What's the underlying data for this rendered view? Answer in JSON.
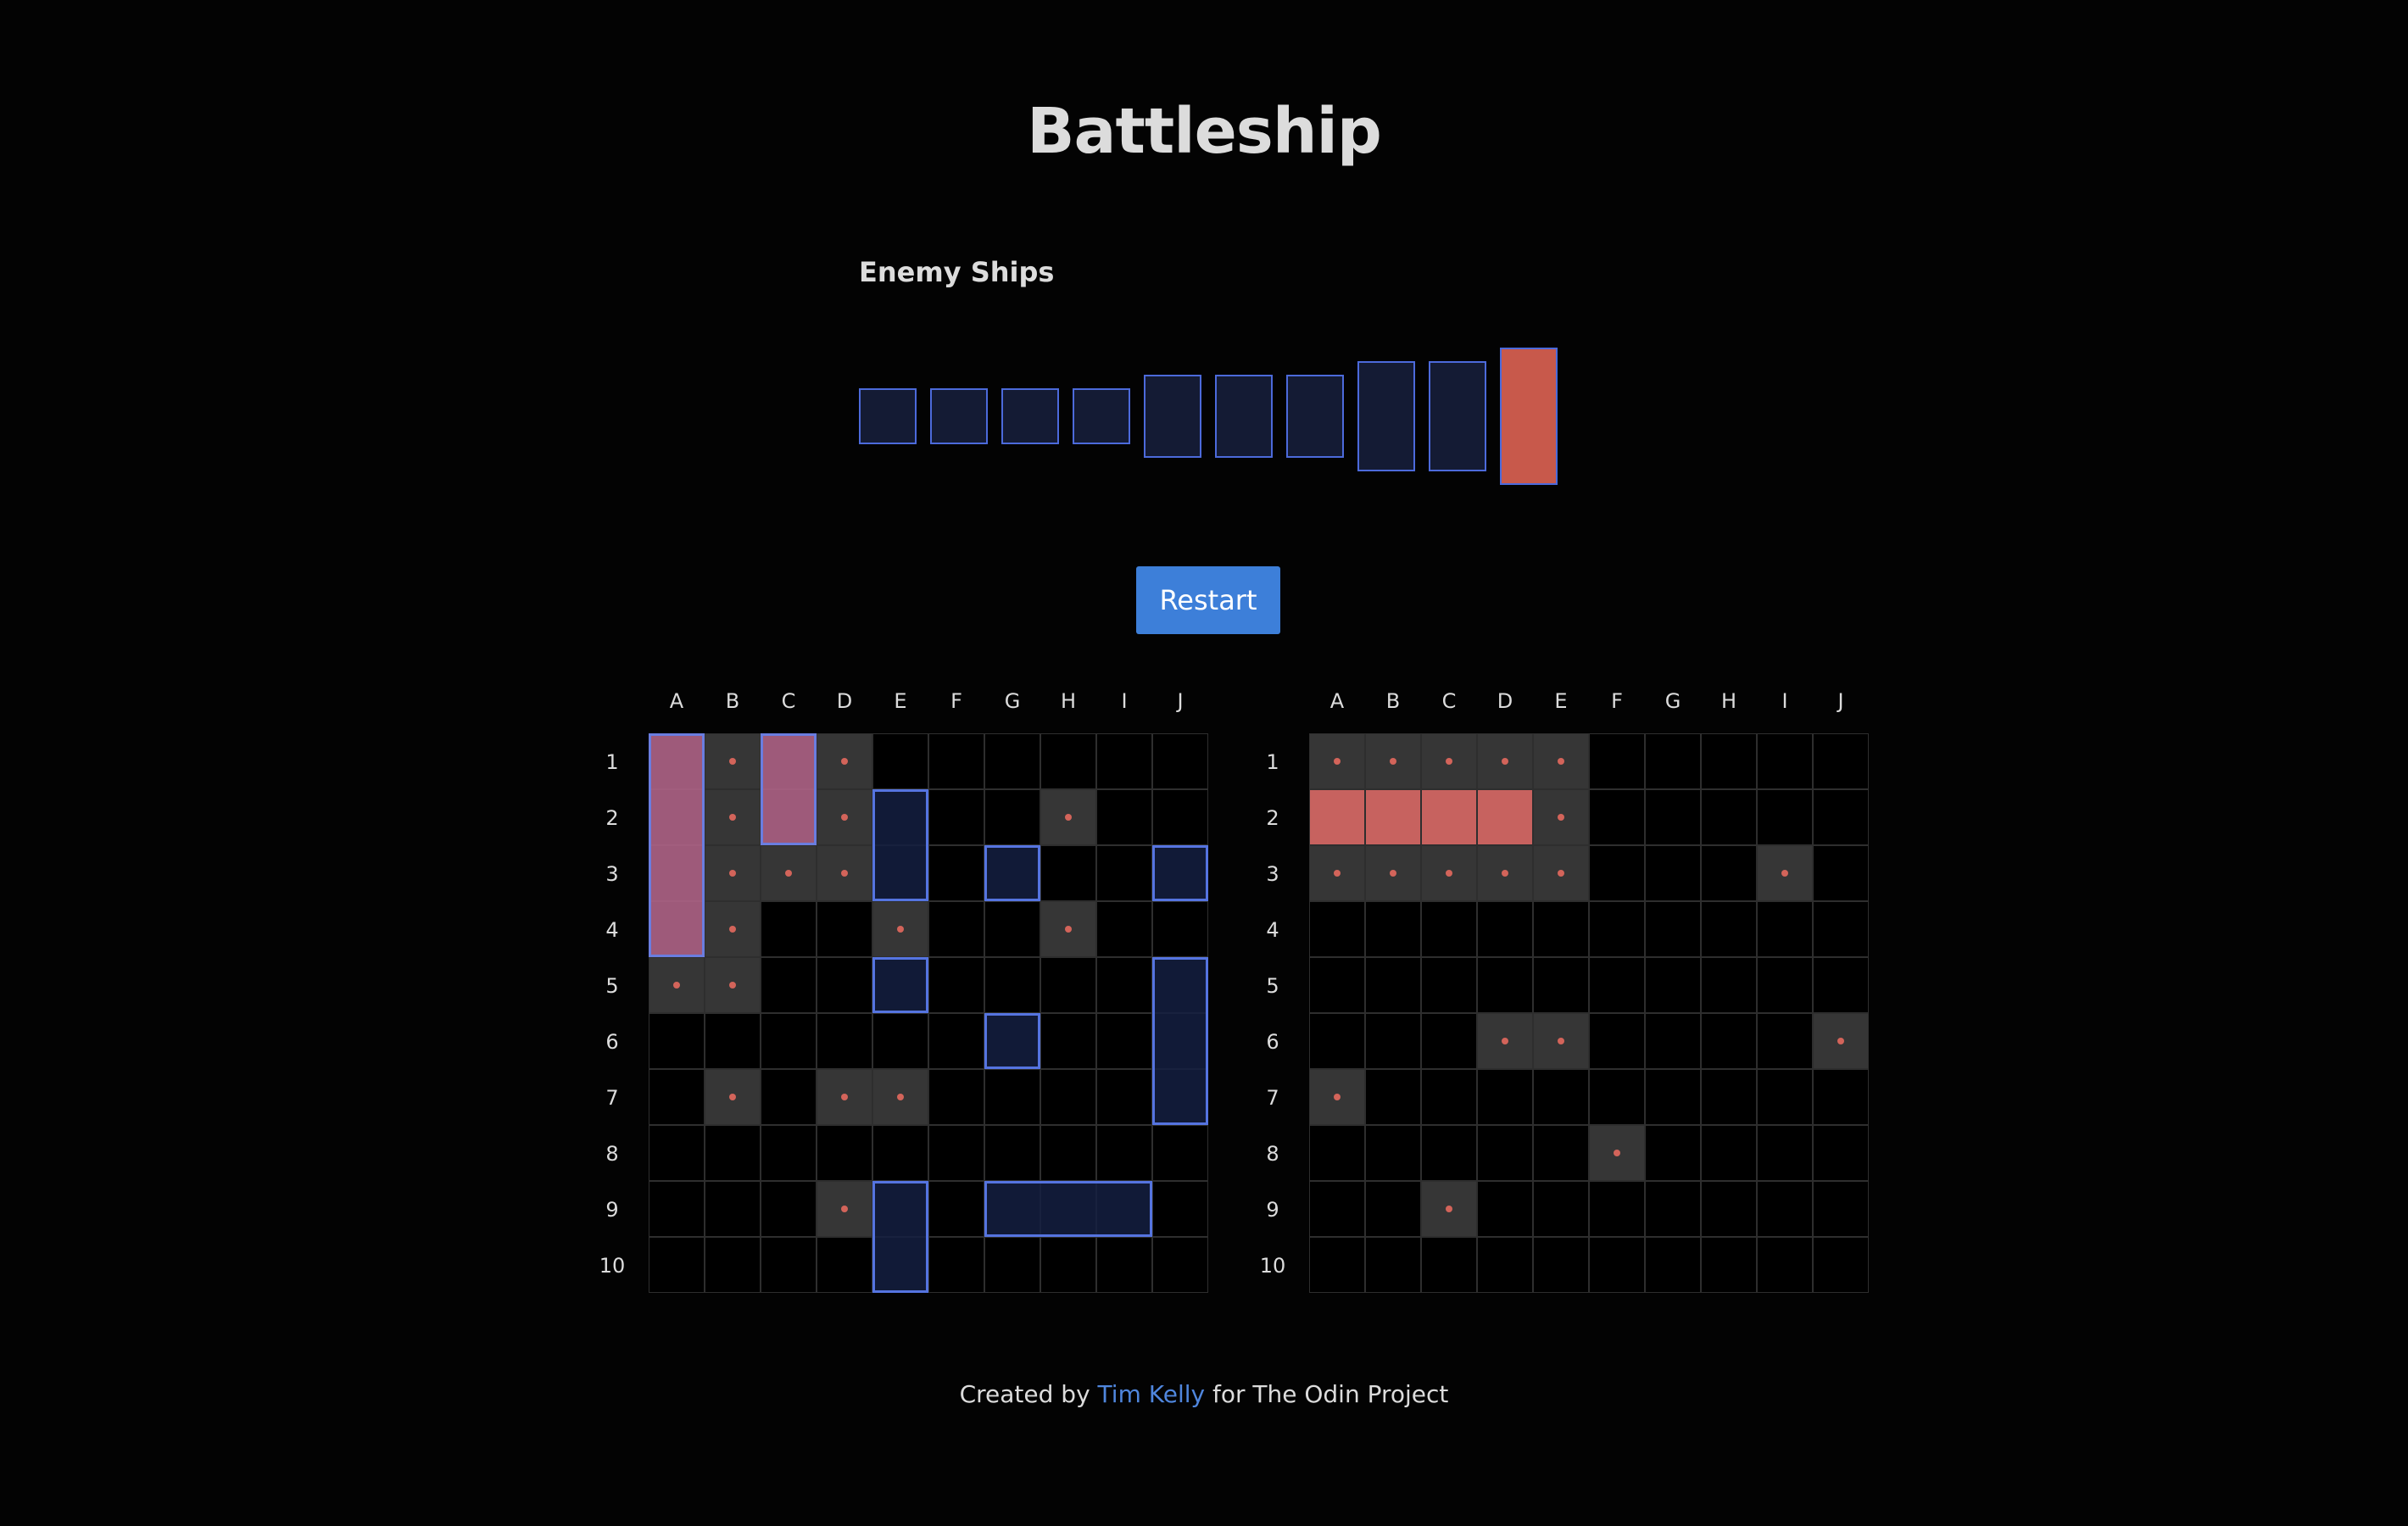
{
  "title": "Battleship",
  "fleet_label": "Enemy Ships",
  "restart_label": "Restart",
  "colors": {
    "background": "#030303",
    "ship_fill": "#141b34",
    "ship_border": "#4c6adb",
    "sunk_ship": "#c8594b",
    "miss_cell": "#363636",
    "shot_marker": "#d3645a",
    "hit_cell": "#c7625f",
    "button": "#3d7fd9",
    "link": "#4f86dd"
  },
  "enemy_ships": [
    {
      "length": 1,
      "status": "afloat"
    },
    {
      "length": 1,
      "status": "afloat"
    },
    {
      "length": 1,
      "status": "afloat"
    },
    {
      "length": 1,
      "status": "afloat"
    },
    {
      "length": 2,
      "status": "afloat"
    },
    {
      "length": 2,
      "status": "afloat"
    },
    {
      "length": 2,
      "status": "afloat"
    },
    {
      "length": 3,
      "status": "afloat"
    },
    {
      "length": 3,
      "status": "afloat"
    },
    {
      "length": 4,
      "status": "sunk"
    }
  ],
  "columns": [
    "A",
    "B",
    "C",
    "D",
    "E",
    "F",
    "G",
    "H",
    "I",
    "J"
  ],
  "rows": [
    "1",
    "2",
    "3",
    "4",
    "5",
    "6",
    "7",
    "8",
    "9",
    "10"
  ],
  "player_board": {
    "misses": [
      "B1",
      "D1",
      "B2",
      "D2",
      "B3",
      "C3",
      "D3",
      "B4",
      "E4",
      "H2",
      "H4",
      "A5",
      "B5",
      "B7",
      "D7",
      "E7",
      "D9"
    ],
    "ships": [
      {
        "start": "A1",
        "length": 4,
        "orientation": "vertical",
        "status": "damaged"
      },
      {
        "start": "C1",
        "length": 2,
        "orientation": "vertical",
        "status": "damaged"
      },
      {
        "start": "E2",
        "length": 2,
        "orientation": "vertical",
        "status": "afloat"
      },
      {
        "start": "G3",
        "length": 1,
        "orientation": "vertical",
        "status": "afloat"
      },
      {
        "start": "J3",
        "length": 1,
        "orientation": "vertical",
        "status": "afloat"
      },
      {
        "start": "E5",
        "length": 1,
        "orientation": "vertical",
        "status": "afloat"
      },
      {
        "start": "G6",
        "length": 1,
        "orientation": "vertical",
        "status": "afloat"
      },
      {
        "start": "J5",
        "length": 3,
        "orientation": "vertical",
        "status": "afloat"
      },
      {
        "start": "E9",
        "length": 2,
        "orientation": "vertical",
        "status": "afloat"
      },
      {
        "start": "G9",
        "length": 3,
        "orientation": "horizontal",
        "status": "afloat"
      }
    ]
  },
  "enemy_board": {
    "misses": [
      "A1",
      "B1",
      "C1",
      "D1",
      "E1",
      "E2",
      "A3",
      "B3",
      "C3",
      "D3",
      "E3",
      "I3",
      "D6",
      "E6",
      "J6",
      "A7",
      "F8",
      "C9"
    ],
    "hits": [
      "A2",
      "B2",
      "C2",
      "D2"
    ]
  },
  "footer": {
    "prefix": "Created by",
    "author": "Tim Kelly",
    "suffix": "for The Odin Project"
  }
}
